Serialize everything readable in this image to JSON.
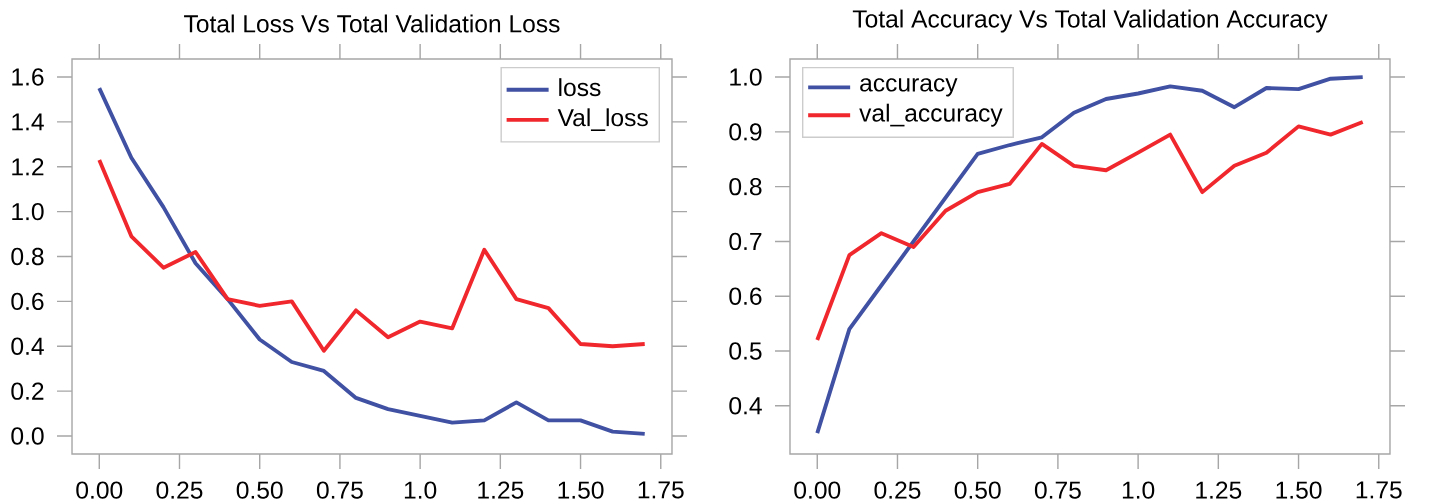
{
  "chart_data": [
    {
      "type": "line",
      "title": "Total Loss Vs Total Validation Loss",
      "x": [
        0,
        0.1,
        0.2,
        0.3,
        0.4,
        0.5,
        0.6,
        0.7,
        0.8,
        0.9,
        1.0,
        1.1,
        1.2,
        1.3,
        1.4,
        1.5,
        1.6,
        1.7
      ],
      "series": [
        {
          "name": "loss",
          "color": "#4051a3",
          "values": [
            1.55,
            1.24,
            1.02,
            0.77,
            0.61,
            0.43,
            0.33,
            0.29,
            0.17,
            0.12,
            0.09,
            0.06,
            0.07,
            0.15,
            0.07,
            0.07,
            0.02,
            0.01
          ]
        },
        {
          "name": "Val_loss",
          "color": "#f0282d",
          "values": [
            1.23,
            0.89,
            0.75,
            0.82,
            0.61,
            0.58,
            0.6,
            0.38,
            0.56,
            0.44,
            0.51,
            0.48,
            0.83,
            0.61,
            0.57,
            0.41,
            0.4,
            0.41
          ]
        }
      ],
      "xlim": [
        -0.085,
        1.785
      ],
      "ylim": [
        -0.08,
        1.68
      ],
      "xticks": [
        {
          "value": 0,
          "label": "0.00"
        },
        {
          "value": 0.25,
          "label": "0.25"
        },
        {
          "value": 0.5,
          "label": "0.50"
        },
        {
          "value": 0.75,
          "label": "0.75"
        },
        {
          "value": 1,
          "label": "1.0"
        },
        {
          "value": 1.25,
          "label": "1.25"
        },
        {
          "value": 1.5,
          "label": "1.50"
        },
        {
          "value": 1.75,
          "label": "1.75"
        }
      ],
      "yticks": [
        {
          "value": 0,
          "label": "0.0"
        },
        {
          "value": 0.2,
          "label": "0.2"
        },
        {
          "value": 0.4,
          "label": "0.4"
        },
        {
          "value": 0.6,
          "label": "0.6"
        },
        {
          "value": 0.8,
          "label": "0.8"
        },
        {
          "value": 1,
          "label": "1.0"
        },
        {
          "value": 1.2,
          "label": "1.2"
        },
        {
          "value": 1.4,
          "label": "1.4"
        },
        {
          "value": 1.6,
          "label": "1.6"
        }
      ],
      "legend": "top right",
      "grid": false,
      "marker": "none",
      "line_style": "solid"
    },
    {
      "type": "line",
      "title": "Total Accuracy Vs Total Validation Accuracy",
      "x": [
        0,
        0.1,
        0.2,
        0.3,
        0.4,
        0.5,
        0.6,
        0.7,
        0.8,
        0.9,
        1.0,
        1.1,
        1.2,
        1.3,
        1.4,
        1.5,
        1.6,
        1.7
      ],
      "series": [
        {
          "name": "accuracy",
          "color": "#4051a3",
          "values": [
            0.35,
            0.54,
            0.62,
            0.7,
            0.78,
            0.86,
            0.876,
            0.89,
            0.935,
            0.96,
            0.97,
            0.983,
            0.975,
            0.945,
            0.98,
            0.978,
            0.997,
            1.0
          ]
        },
        {
          "name": "val_accuracy",
          "color": "#f0282d",
          "values": [
            0.52,
            0.675,
            0.715,
            0.69,
            0.756,
            0.79,
            0.805,
            0.878,
            0.838,
            0.83,
            0.862,
            0.895,
            0.79,
            0.838,
            0.862,
            0.91,
            0.895,
            0.918
          ]
        }
      ],
      "xlim": [
        -0.085,
        1.785
      ],
      "ylim": [
        0.312,
        1.033
      ],
      "xticks": [
        {
          "value": 0,
          "label": "0.00"
        },
        {
          "value": 0.25,
          "label": "0.25"
        },
        {
          "value": 0.5,
          "label": "0.50"
        },
        {
          "value": 0.75,
          "label": "0.75"
        },
        {
          "value": 1,
          "label": "1.0"
        },
        {
          "value": 1.25,
          "label": "1.25"
        },
        {
          "value": 1.5,
          "label": "1.50"
        },
        {
          "value": 1.75,
          "label": "1.75"
        }
      ],
      "yticks": [
        0.4,
        0.5,
        0.6,
        0.7,
        0.8,
        0.9,
        {
          "value": 1,
          "label": "1.0"
        }
      ],
      "legend": "top left",
      "grid": false,
      "marker": "none",
      "line_style": "solid"
    }
  ]
}
